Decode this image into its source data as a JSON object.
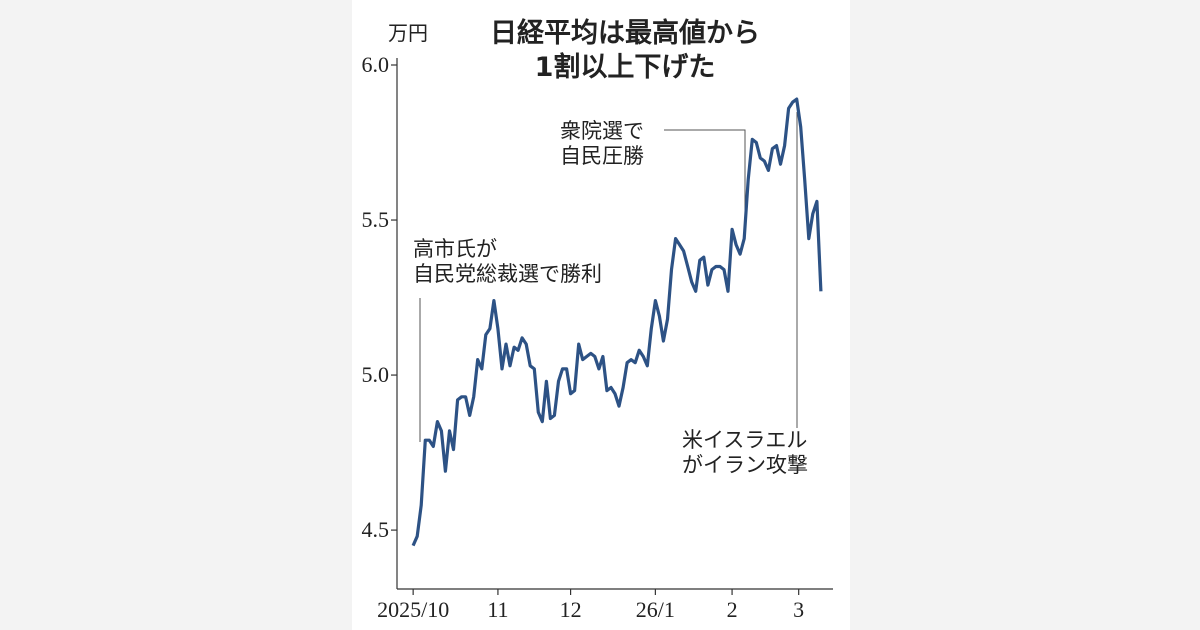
{
  "chart_data": {
    "type": "line",
    "title_lines": [
      "日経平均は最高値から",
      "1割以上下げた"
    ],
    "y_unit": "万円",
    "color": "#2d5285",
    "values": [
      4.45,
      4.48,
      4.58,
      4.79,
      4.79,
      4.77,
      4.85,
      4.82,
      4.69,
      4.82,
      4.76,
      4.92,
      4.93,
      4.93,
      4.87,
      4.93,
      5.05,
      5.02,
      5.13,
      5.15,
      5.24,
      5.15,
      5.02,
      5.1,
      5.03,
      5.09,
      5.08,
      5.12,
      5.1,
      5.03,
      5.02,
      4.88,
      4.85,
      4.98,
      4.86,
      4.87,
      4.98,
      5.02,
      5.02,
      4.94,
      4.95,
      5.1,
      5.05,
      5.06,
      5.07,
      5.06,
      5.02,
      5.06,
      4.95,
      4.96,
      4.94,
      4.9,
      4.96,
      5.04,
      5.05,
      5.04,
      5.08,
      5.06,
      5.03,
      5.15,
      5.24,
      5.19,
      5.11,
      5.18,
      5.34,
      5.44,
      5.42,
      5.4,
      5.35,
      5.3,
      5.27,
      5.37,
      5.38,
      5.29,
      5.34,
      5.35,
      5.35,
      5.34,
      5.27,
      5.47,
      5.42,
      5.39,
      5.44,
      5.63,
      5.76,
      5.75,
      5.7,
      5.69,
      5.66,
      5.73,
      5.74,
      5.68,
      5.74,
      5.86,
      5.88,
      5.89,
      5.8,
      5.63,
      5.44,
      5.52,
      5.56,
      5.27
    ],
    "xlim": [
      -4,
      104
    ],
    "xticks": [
      {
        "value": 0,
        "label": "2025/10"
      },
      {
        "value": 21,
        "label": "11"
      },
      {
        "value": 39,
        "label": "12"
      },
      {
        "value": 60,
        "label": "26/1"
      },
      {
        "value": 79,
        "label": "2"
      },
      {
        "value": 95.5,
        "label": "3"
      }
    ],
    "ylim": [
      4.31,
      6.0
    ],
    "yticks": [
      {
        "value": 6,
        "label": "6.0"
      },
      5.5,
      {
        "value": 5,
        "label": "5.0"
      },
      4.5
    ],
    "annotations": [
      {
        "lines": [
          "高市氏が",
          "自民党総裁選で勝利"
        ]
      },
      {
        "lines": [
          "衆院選で",
          "自民圧勝"
        ]
      },
      {
        "lines": [
          "米イスラエル",
          "がイラン攻撃"
        ]
      }
    ]
  }
}
